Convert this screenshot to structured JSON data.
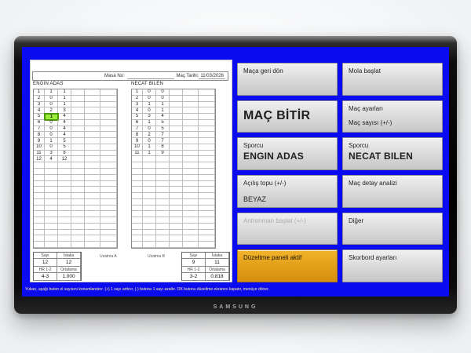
{
  "brand": "SAMSUNG",
  "colors": {
    "accent_blue": "#0b0bf0",
    "highlight_green": "#9ded3d",
    "active_orange": "#e8a01c"
  },
  "scoreboard": {
    "masa_label": "Masa No:",
    "date_label": "Maç Tarihi:",
    "date_value": "11/03/2026",
    "uzatma_a": "Uzatma A",
    "uzatma_b": "Uzatma B",
    "total_rows": 26,
    "stats_headers": {
      "sayi": "Sayı",
      "istaka": "İstaka",
      "hr": "HR 1-2",
      "ortalama": "Ortalama"
    },
    "players": [
      {
        "name": "ENGIN ADAS",
        "highlight_row": 5,
        "rows": [
          [
            1,
            1,
            1
          ],
          [
            2,
            0,
            1
          ],
          [
            3,
            0,
            1
          ],
          [
            4,
            2,
            3
          ],
          [
            5,
            1,
            4
          ],
          [
            6,
            0,
            4
          ],
          [
            7,
            0,
            4
          ],
          [
            8,
            0,
            4
          ],
          [
            9,
            1,
            5
          ],
          [
            10,
            0,
            5
          ],
          [
            11,
            3,
            8
          ],
          [
            12,
            4,
            12
          ]
        ],
        "stats": {
          "sayi": "12",
          "istaka": "12",
          "hr": "4-3",
          "ortalama": "1.000"
        }
      },
      {
        "name": "NECAT BILEN",
        "rows": [
          [
            1,
            0,
            0
          ],
          [
            2,
            0,
            0
          ],
          [
            3,
            1,
            1
          ],
          [
            4,
            0,
            1
          ],
          [
            5,
            3,
            4
          ],
          [
            6,
            1,
            5
          ],
          [
            7,
            0,
            5
          ],
          [
            8,
            2,
            7
          ],
          [
            9,
            0,
            7
          ],
          [
            10,
            1,
            8
          ],
          [
            11,
            1,
            9
          ]
        ],
        "stats": {
          "sayi": "9",
          "istaka": "11",
          "hr": "3-2",
          "ortalama": "0.818"
        }
      }
    ]
  },
  "footer_note": "Yukarı, aşağı buton el sayısını konumlandırır. (+) 1 sayı arttırır, (-) butonu 1 sayı azaltır. OK butonu düzeltme ekranını kapatır, menüye döner.",
  "menu": {
    "buttons": [
      {
        "id": "maca-geri-don",
        "label": "Maça geri dön"
      },
      {
        "id": "mola-baslat",
        "label": "Mola başlat"
      },
      {
        "id": "mac-bitir",
        "label": "MAÇ BİTİR"
      },
      {
        "id": "mac-ayarlari",
        "label": "Maç ayarları",
        "label2": "Maç sayısı (+/-)"
      },
      {
        "id": "sporcu-1",
        "label": "Sporcu",
        "label2": "ENGIN ADAS"
      },
      {
        "id": "sporcu-2",
        "label": "Sporcu",
        "label2": "NECAT BILEN"
      },
      {
        "id": "acilis-topu",
        "label": "Açılış topu (+/-)",
        "label2": "BEYAZ"
      },
      {
        "id": "mac-detay-analizi",
        "label": "Maç detay analizi"
      },
      {
        "id": "antrenman-baslat",
        "label": "Antrenman başlat (+/-)",
        "disabled": true
      },
      {
        "id": "diger",
        "label": "Diğer"
      },
      {
        "id": "duzeltme-paneli",
        "label": "Düzeltme paneli aktif",
        "active": true
      },
      {
        "id": "skorbord-ayarlari",
        "label": "Skorbord ayarları"
      }
    ]
  }
}
